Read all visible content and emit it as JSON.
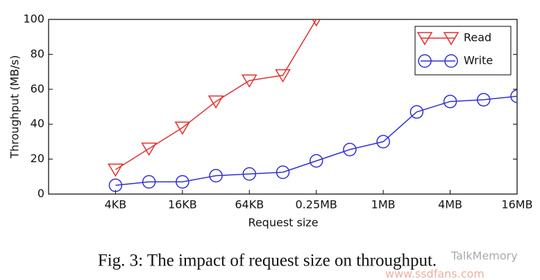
{
  "chart_data": {
    "type": "line",
    "categories": [
      null,
      null,
      "4KB",
      null,
      "16KB",
      null,
      "64KB",
      null,
      "0.25MB",
      null,
      "1MB",
      null,
      "4MB",
      null,
      "16MB"
    ],
    "series": [
      {
        "name": "Read",
        "color": "#e03030",
        "marker": "triangle-down",
        "values": [
          null,
          null,
          14,
          26,
          38,
          53,
          65,
          68,
          100,
          null,
          null,
          null,
          null,
          null,
          null
        ]
      },
      {
        "name": "Write",
        "color": "#2f2fd0",
        "marker": "circle",
        "values": [
          null,
          null,
          5,
          7,
          7,
          10.5,
          11.5,
          12.5,
          19,
          25.5,
          30,
          47,
          53,
          54,
          56
        ]
      }
    ],
    "xlabel": "Request size",
    "ylabel": "Throughput (MB/s)",
    "ylim": [
      0,
      100
    ],
    "yticks": [
      0,
      20,
      40,
      60,
      80,
      100
    ],
    "legend": "upper right",
    "caption": "Fig. 3: The impact of request size on throughput.",
    "watermark": [
      "TalkMemory",
      "www.ssdfans.com"
    ]
  }
}
